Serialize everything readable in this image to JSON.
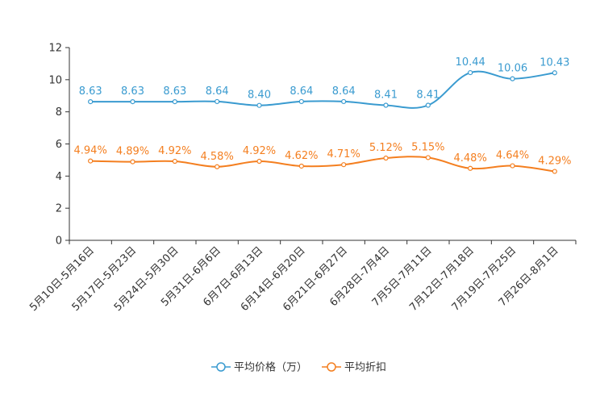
{
  "chart_data": {
    "type": "line",
    "title": "",
    "xlabel": "",
    "ylabel": "",
    "ylim": [
      0,
      12
    ],
    "yticks": [
      "0",
      "2",
      "4",
      "6",
      "8",
      "10",
      "12"
    ],
    "grid": false,
    "legend_position": "bottom-center",
    "categories": [
      "5月10日-5月16日",
      "5月17日-5月23日",
      "5月24日-5月30日",
      "5月31日-6月6日",
      "6月7日-6月13日",
      "6月14日-6月20日",
      "6月21日-6月27日",
      "6月28日-7月4日",
      "7月5日-7月11日",
      "7月12日-7月18日",
      "7月19日-7月25日",
      "7月26日-8月1日"
    ],
    "series": [
      {
        "name": "平均价格（万）",
        "color": "#3a9bd0",
        "values": [
          8.63,
          8.63,
          8.63,
          8.64,
          8.4,
          8.64,
          8.64,
          8.41,
          8.41,
          10.44,
          10.06,
          10.43
        ],
        "labels": [
          "8.63",
          "8.63",
          "8.63",
          "8.64",
          "8.40",
          "8.64",
          "8.64",
          "8.41",
          "8.41",
          "10.44",
          "10.06",
          "10.43"
        ]
      },
      {
        "name": "平均折扣",
        "color": "#f47f20",
        "values": [
          4.94,
          4.89,
          4.92,
          4.58,
          4.92,
          4.62,
          4.71,
          5.12,
          5.15,
          4.48,
          4.64,
          4.29
        ],
        "labels": [
          "4.94%",
          "4.89%",
          "4.92%",
          "4.58%",
          "4.92%",
          "4.62%",
          "4.71%",
          "5.12%",
          "5.15%",
          "4.48%",
          "4.64%",
          "4.29%"
        ]
      }
    ]
  }
}
